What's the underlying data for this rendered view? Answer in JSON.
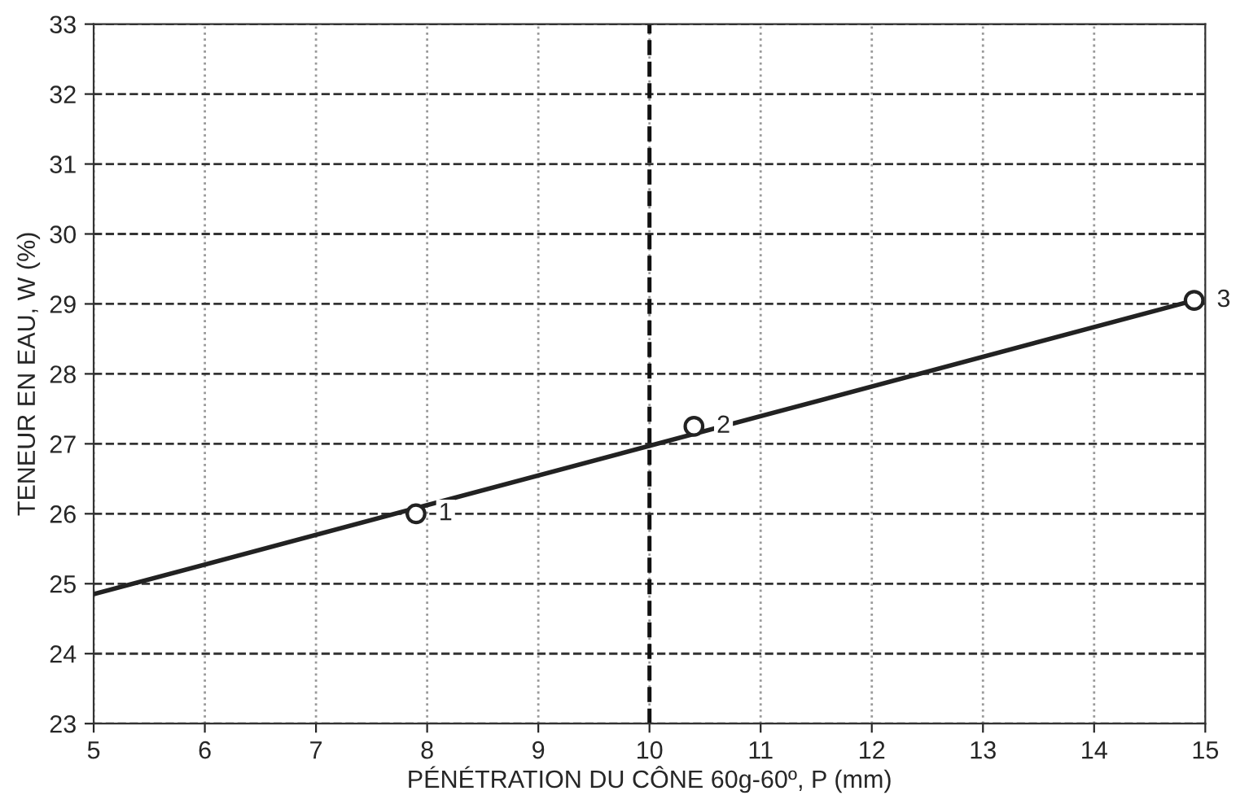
{
  "chart_data": {
    "type": "scatter",
    "xlabel": "PÉNÉTRATION DU CÔNE 60g-60º, P (mm)",
    "ylabel": "TENEUR EN EAU, W (%)",
    "series": [
      {
        "type": "line",
        "x": [
          5,
          14.9
        ],
        "values": [
          24.85,
          29.05
        ],
        "color": "#222222",
        "marker": "none",
        "line_style": "solid"
      },
      {
        "x": [
          7.9,
          10.4,
          14.9
        ],
        "values": [
          26.0,
          27.25,
          29.05
        ],
        "color": "#222222",
        "marker": "circle"
      }
    ],
    "annotations": [
      {
        "text": "1",
        "x": 7.9,
        "y": 26.0
      },
      {
        "text": "2",
        "x": 10.4,
        "y": 27.25
      },
      {
        "text": "3",
        "x": 14.9,
        "y": 29.05
      }
    ],
    "ref_lines": [
      {
        "axis": "x",
        "value": 10,
        "color": "#111111",
        "line_style": "dashed"
      }
    ],
    "xlim": [
      5,
      15
    ],
    "xticks": [
      5,
      6,
      7,
      8,
      9,
      10,
      11,
      12,
      13,
      14,
      15
    ],
    "ylim": [
      23,
      33
    ],
    "yticks": [
      23,
      24,
      25,
      26,
      27,
      28,
      29,
      30,
      31,
      32,
      33
    ],
    "grid": true,
    "legend": false
  }
}
